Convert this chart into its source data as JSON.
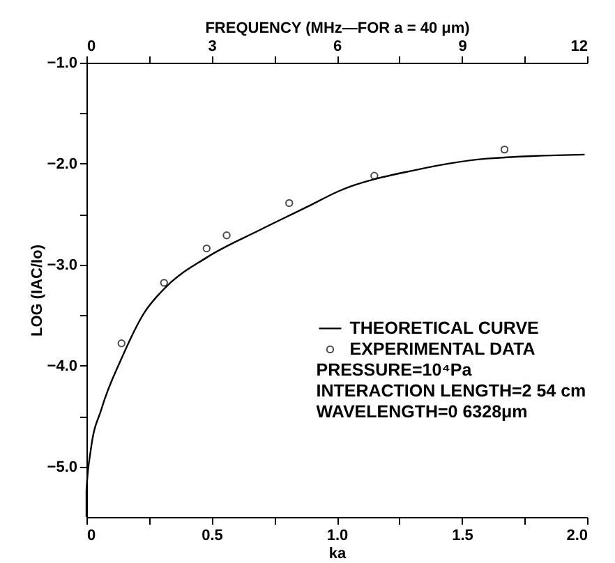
{
  "chart_data": {
    "type": "line",
    "xlabel": "ka",
    "ylabel": "LOG (IAC/Io)",
    "x2label": "FREQUENCY (MHz—FOR a = 40 μm)",
    "xlim": [
      0,
      2.0
    ],
    "ylim": [
      -5.5,
      -1.0
    ],
    "x2lim": [
      0,
      12
    ],
    "xticks": [
      0,
      {
        "value": 0.25,
        "label": null
      },
      0.5,
      {
        "value": 0.75,
        "label": null
      },
      {
        "value": 1.0,
        "label": "1.0"
      },
      {
        "value": 1.25,
        "label": null
      },
      1.5,
      {
        "value": 1.75,
        "label": null
      },
      {
        "value": 2.0,
        "label": "2.0"
      }
    ],
    "yticks": [
      {
        "value": -1.0,
        "label": "−1.0"
      },
      {
        "value": -1.5,
        "label": null
      },
      {
        "value": -2.0,
        "label": "−2.0"
      },
      {
        "value": -2.5,
        "label": null
      },
      {
        "value": -3.0,
        "label": "−3.0"
      },
      {
        "value": -3.5,
        "label": null
      },
      {
        "value": -4.0,
        "label": "−4.0"
      },
      {
        "value": -4.5,
        "label": null
      },
      {
        "value": -5.0,
        "label": "−5.0"
      }
    ],
    "x2ticks": [
      0,
      {
        "value": 1.5,
        "label": null
      },
      3,
      {
        "value": 4.5,
        "label": null
      },
      6,
      {
        "value": 7.5,
        "label": null
      },
      9,
      {
        "value": 10.5,
        "label": null
      },
      12
    ],
    "grid": false,
    "legend": "right",
    "series": [
      {
        "name": "THEORETICAL CURVE",
        "type": "line",
        "color": "#000000",
        "marker": "none",
        "line_style": "solid",
        "x": [
          0,
          0.0,
          0.017,
          0.06,
          0.14,
          0.23,
          0.31,
          0.48,
          0.69,
          0.88,
          1.01,
          1.32,
          1.6,
          1.99
        ],
        "values": [
          -5.5,
          -5.24,
          -4.84,
          -4.43,
          -3.93,
          -3.48,
          -3.24,
          -2.93,
          -2.66,
          -2.43,
          -2.27,
          -2.06,
          -1.95,
          -1.91
        ]
      },
      {
        "name": "EXPERIMENTAL DATA",
        "type": "scatter",
        "color": "#000000",
        "marker": "circle",
        "x": [
          0.14,
          0.31,
          0.48,
          0.56,
          0.81,
          1.15,
          1.67
        ],
        "values": [
          -3.78,
          -3.18,
          -2.84,
          -2.71,
          -2.39,
          -2.12,
          -1.86
        ]
      }
    ],
    "annotations": [
      "PRESSURE=10⁴Pa",
      "INTERACTION LENGTH=2 54 cm",
      "WAVELENGTH=0 6328μm"
    ]
  }
}
